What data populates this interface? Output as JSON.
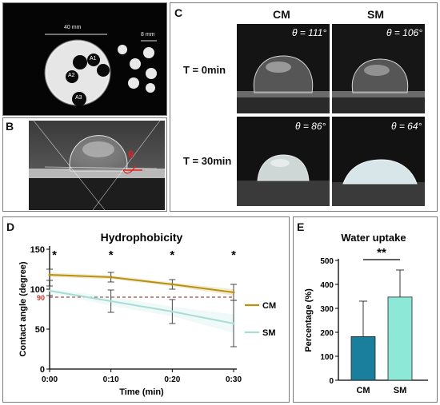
{
  "panels": {
    "A": {
      "label": "A",
      "scale_large": "40 mm",
      "scale_small": "8 mm",
      "spots": [
        "A1",
        "A2",
        "A3"
      ]
    },
    "B": {
      "label": "B",
      "angle_symbol": "θ"
    },
    "C": {
      "label": "C",
      "col_cm": "CM",
      "col_sm": "SM",
      "row_0": "T = 0min",
      "row_30": "T = 30min",
      "angles": {
        "cm_0": "θ = 111°",
        "sm_0": "θ = 106°",
        "cm_30": "θ = 86°",
        "sm_30": "θ = 64°"
      }
    },
    "D": {
      "label": "D"
    },
    "E": {
      "label": "E"
    }
  },
  "chart_data": [
    {
      "type": "line",
      "title": "Hydrophobicity",
      "xlabel": "Time (min)",
      "ylabel": "Contact angle (degree)",
      "categories": [
        "0:00",
        "0:10",
        "0:20",
        "0:30"
      ],
      "ylim": [
        0,
        150
      ],
      "yticks": [
        "0",
        "50",
        "100",
        "150"
      ],
      "reference_line": {
        "value": 90,
        "label": "90"
      },
      "significance": [
        "*",
        "*",
        "*",
        "*"
      ],
      "series": [
        {
          "name": "CM",
          "values": [
            118,
            115,
            106,
            96
          ],
          "errors": [
            7,
            6,
            6,
            10
          ],
          "color": "#b8920e"
        },
        {
          "name": "SM",
          "values": [
            98,
            85,
            72,
            57
          ],
          "errors": [
            6,
            14,
            15,
            29
          ],
          "color": "#a9dcd6"
        }
      ],
      "legend_position": "right"
    },
    {
      "type": "bar",
      "title": "Water uptake",
      "xlabel": "",
      "ylabel": "Percentage (%)",
      "categories": [
        "CM",
        "SM"
      ],
      "ylim": [
        0,
        500
      ],
      "yticks": [
        "0",
        "100",
        "200",
        "300",
        "400",
        "500"
      ],
      "series": [
        {
          "name": "",
          "values": [
            182,
            347
          ],
          "errors": [
            148,
            113
          ]
        }
      ],
      "bar_colors": [
        "#1a7f9c",
        "#8de8d8"
      ],
      "significance": "**"
    }
  ]
}
